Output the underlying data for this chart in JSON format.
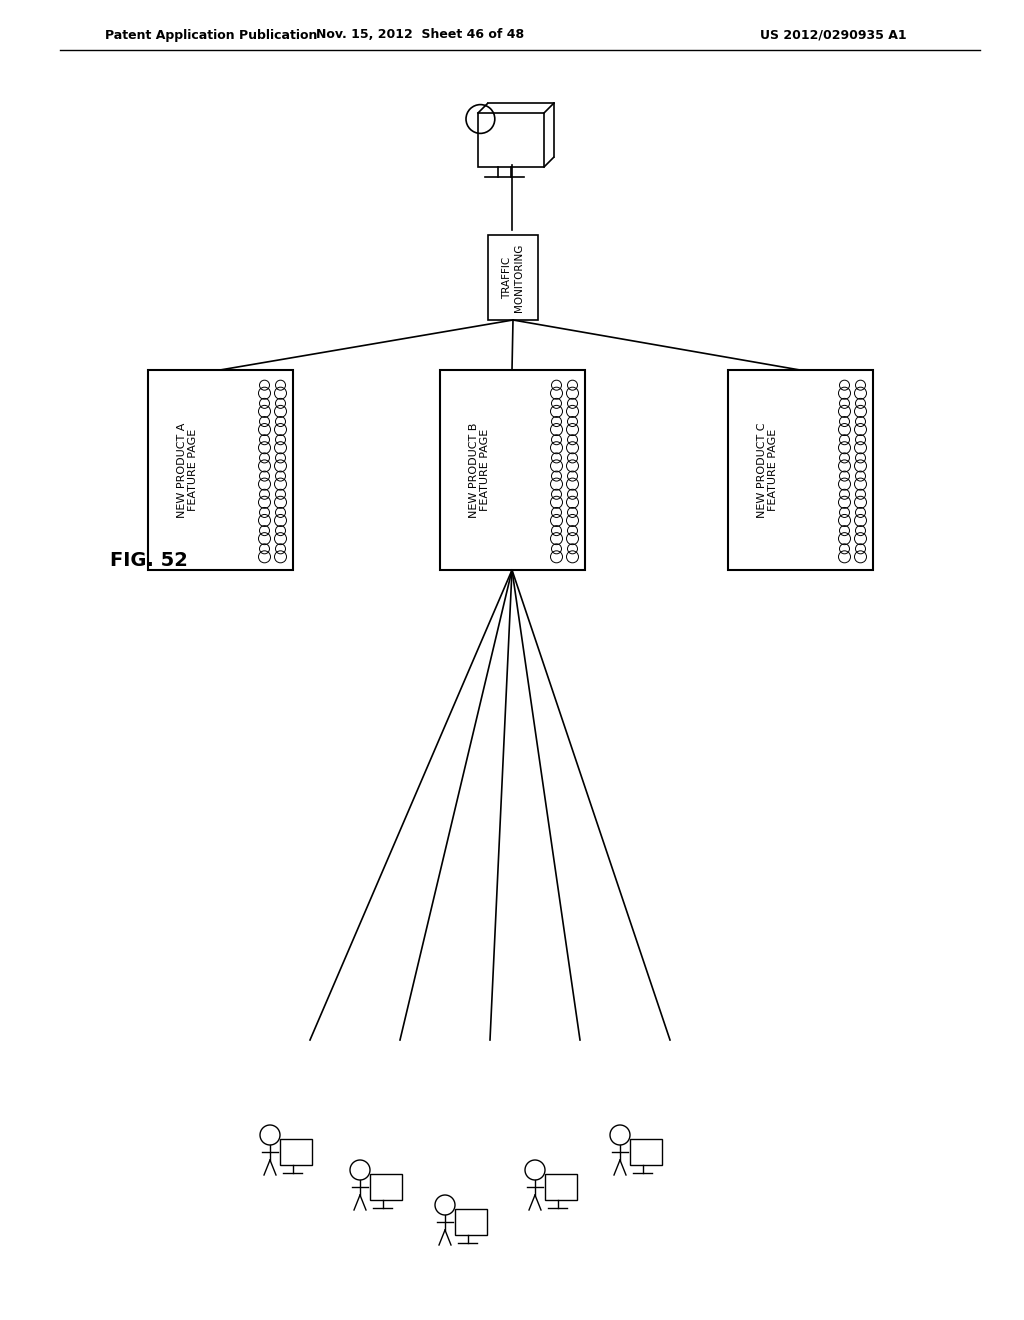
{
  "bg_color": "#ffffff",
  "header_left": "Patent Application Publication",
  "header_mid": "Nov. 15, 2012  Sheet 46 of 48",
  "header_right": "US 2012/0290935 A1",
  "fig_label": "FIG. 52",
  "traffic_box_text": "TRAFFIC\nMONITORING",
  "page_labels": [
    "NEW PRODUCT A\nFEATURE PAGE",
    "NEW PRODUCT B\nFEATURE PAGE",
    "NEW PRODUCT C\nFEATURE PAGE"
  ],
  "line_color": "#000000",
  "box_color": "#ffffff",
  "box_edge": "#000000"
}
